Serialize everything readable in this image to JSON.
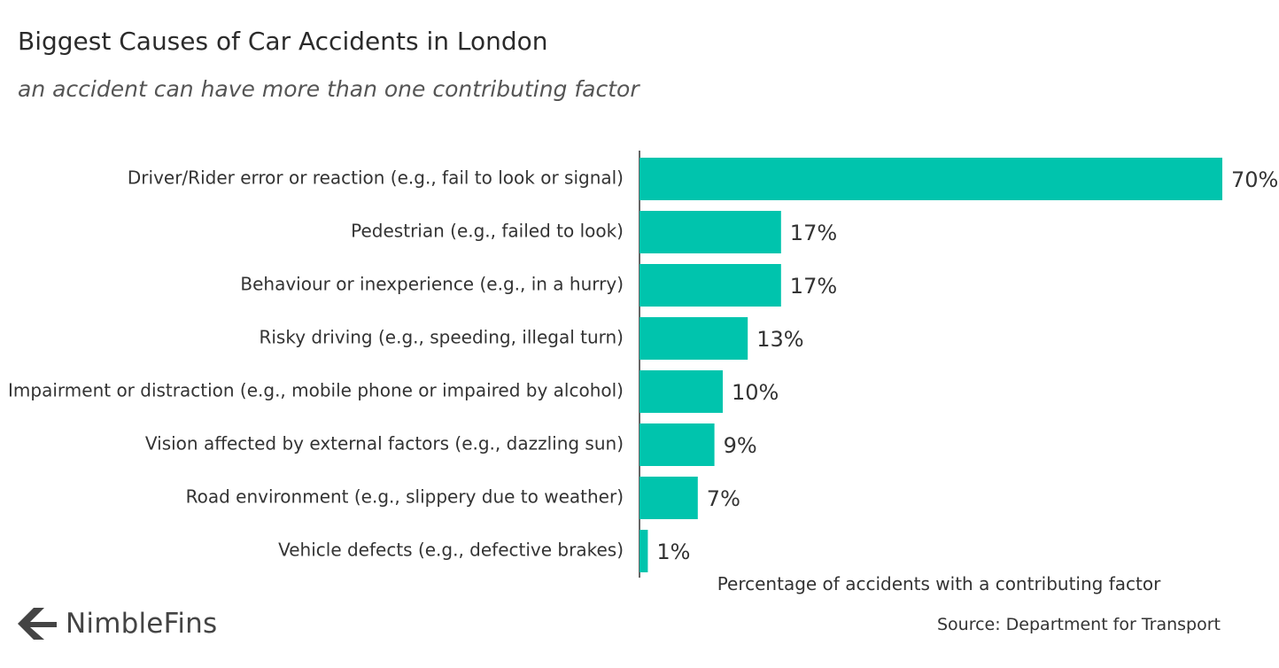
{
  "chart_data": {
    "type": "bar",
    "orientation": "horizontal",
    "title": "Biggest Causes of Car Accidents in London",
    "subtitle": "an accident can have more than one contributing factor",
    "xlabel": "Percentage of accidents with a contributing factor",
    "ylabel": "",
    "xlim": [
      0,
      70
    ],
    "grid": false,
    "bar_color": "#00c4ad",
    "categories": [
      "Driver/Rider error or reaction (e.g., fail to look or signal)",
      "Pedestrian (e.g., failed to look)",
      "Behaviour or inexperience (e.g., in a hurry)",
      "Risky driving (e.g., speeding, illegal turn)",
      "Impairment or distraction (e.g., mobile phone or impaired by alcohol)",
      "Vision affected by external factors (e.g., dazzling sun)",
      "Road environment (e.g., slippery due to weather)",
      "Vehicle defects (e.g., defective brakes)"
    ],
    "values": [
      70,
      17,
      17,
      13,
      10,
      9,
      7,
      1
    ],
    "value_labels": [
      "70%",
      "17%",
      "17%",
      "13%",
      "10%",
      "9%",
      "7%",
      "1%"
    ]
  },
  "source": "Source: Department for Transport",
  "brand": {
    "name": "NimbleFins",
    "logo_icon": "nimblefins-arrow-icon",
    "logo_color": "#444444"
  }
}
